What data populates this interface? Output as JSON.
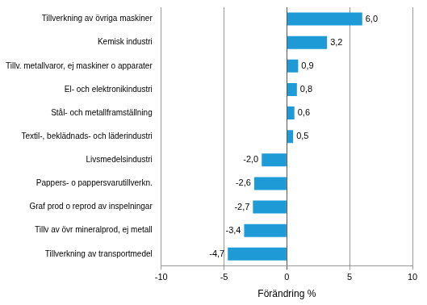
{
  "chart_data": {
    "type": "bar",
    "orientation": "horizontal",
    "categories": [
      "Tillverkning av övriga maskiner",
      "Kemisk industri",
      "Tillv. metallvaror, ej maskiner o apparater",
      "El- och elektronikindustri",
      "Stål- och metallframställning",
      "Textil-, beklädnads- och läderindustri",
      "Livsmedelsindustri",
      "Pappers- o pappersvarutillverkn.",
      "Graf prod o reprod av inspelningar",
      "Tillv av övr mineralprod, ej metall",
      "Tillverkning av transportmedel"
    ],
    "values": [
      6.0,
      3.2,
      0.9,
      0.8,
      0.6,
      0.5,
      -2.0,
      -2.6,
      -2.7,
      -3.4,
      -4.7
    ],
    "value_labels": [
      "6,0",
      "3,2",
      "0,9",
      "0,8",
      "0,6",
      "0,5",
      "-2,0",
      "-2,6",
      "-2,7",
      "-3,4",
      "-4,7"
    ],
    "data_labels": true,
    "color": "#1e9bd7",
    "xlabel": "Förändring %",
    "xlim": [
      -10,
      10
    ],
    "xticks": [
      -10,
      -5,
      0,
      5,
      10
    ],
    "grid": true
  }
}
